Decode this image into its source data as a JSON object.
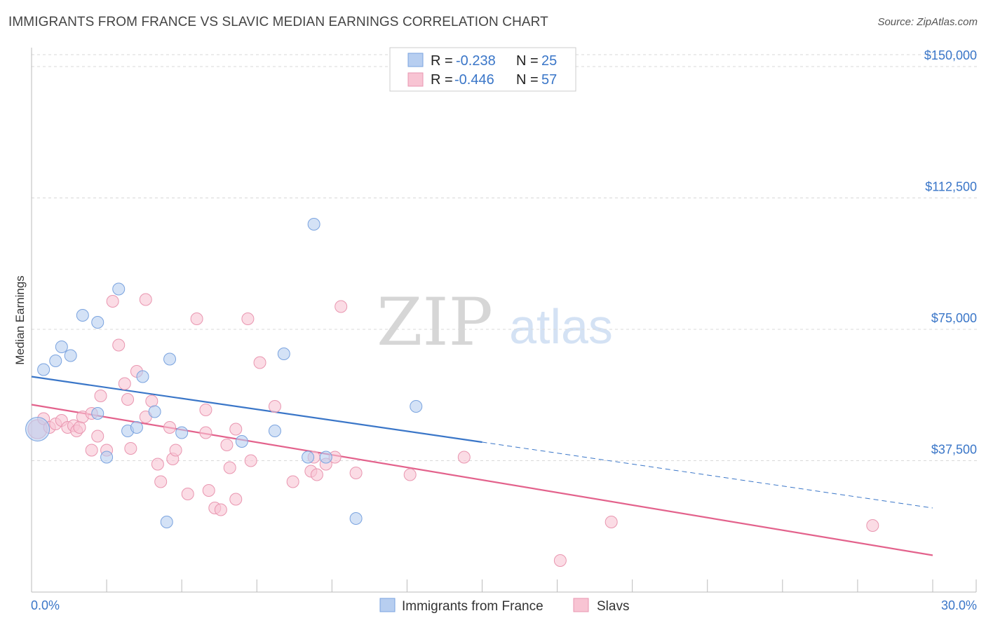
{
  "title": "IMMIGRANTS FROM FRANCE VS SLAVIC MEDIAN EARNINGS CORRELATION CHART",
  "source": "Source: ZipAtlas.com",
  "watermark": {
    "zip": "ZIP",
    "atlas": "atlas"
  },
  "colors": {
    "blue_fill": "#b7cef0",
    "blue_stroke": "#7aa3df",
    "blue_line": "#3a76c8",
    "pink_fill": "#f8c4d3",
    "pink_stroke": "#e996b0",
    "pink_line": "#e3628c",
    "tick_label": "#3a76c8",
    "grid": "#d8d8d8"
  },
  "legend_box": {
    "rows": [
      {
        "r_label": "R = ",
        "r_value": "-0.238",
        "n_label": "N = ",
        "n_value": "25"
      },
      {
        "r_label": "R = ",
        "r_value": "-0.446",
        "n_label": "N = ",
        "n_value": "57"
      }
    ]
  },
  "chart_data": {
    "type": "scatter",
    "ylabel": "Median Earnings",
    "xlim": [
      0,
      30
    ],
    "ylim": [
      0,
      155000
    ],
    "y_ticks": [
      37500,
      75000,
      112500,
      150000
    ],
    "y_tick_labels": [
      "$37,500",
      "$75,000",
      "$112,500",
      "$150,000"
    ],
    "x_tick_labels": [
      "0.0%",
      "30.0%"
    ],
    "x_axis_unit": "percent",
    "grid": true,
    "legend_position": "top-center and bottom",
    "series": [
      {
        "name": "Immigrants from France",
        "color": "blue",
        "r": -0.238,
        "n": 25,
        "trend": {
          "x0": 0,
          "y0": 61500,
          "x1": 15,
          "y1": 42800,
          "dashed_to_x": 30,
          "dashed_to_y": 24000
        },
        "points": [
          [
            0.2,
            46500,
            3
          ],
          [
            0.4,
            63500,
            1
          ],
          [
            0.8,
            66000,
            1
          ],
          [
            1.0,
            70000,
            1
          ],
          [
            1.3,
            67500,
            1
          ],
          [
            1.7,
            79000,
            1
          ],
          [
            2.2,
            51000,
            1
          ],
          [
            2.2,
            77000,
            1
          ],
          [
            2.5,
            38500,
            1
          ],
          [
            2.9,
            86500,
            1
          ],
          [
            3.2,
            46000,
            1
          ],
          [
            3.5,
            47000,
            1
          ],
          [
            3.7,
            61500,
            1
          ],
          [
            4.1,
            51500,
            1
          ],
          [
            4.5,
            20000,
            1
          ],
          [
            4.6,
            66500,
            1
          ],
          [
            5.0,
            45500,
            1
          ],
          [
            7.0,
            43000,
            1
          ],
          [
            8.1,
            46000,
            1
          ],
          [
            8.4,
            68000,
            1
          ],
          [
            9.2,
            38500,
            1
          ],
          [
            9.4,
            105000,
            1
          ],
          [
            9.8,
            38500,
            1
          ],
          [
            10.8,
            21000,
            1
          ],
          [
            12.8,
            53000,
            1
          ]
        ]
      },
      {
        "name": "Slavs",
        "color": "pink",
        "r": -0.446,
        "n": 57,
        "trend": {
          "x0": 0,
          "y0": 53500,
          "x1": 30,
          "y1": 10500
        },
        "points": [
          [
            0.2,
            46500,
            2
          ],
          [
            0.4,
            49500,
            1
          ],
          [
            0.6,
            47000,
            1
          ],
          [
            0.8,
            48000,
            1
          ],
          [
            1.0,
            49000,
            1
          ],
          [
            1.2,
            47000,
            1
          ],
          [
            1.4,
            47500,
            1
          ],
          [
            1.5,
            46000,
            1
          ],
          [
            1.6,
            47000,
            1
          ],
          [
            1.7,
            50000,
            1
          ],
          [
            2.0,
            51000,
            1
          ],
          [
            2.0,
            40500,
            1
          ],
          [
            2.2,
            44500,
            1
          ],
          [
            2.3,
            56000,
            1
          ],
          [
            2.5,
            40500,
            1
          ],
          [
            2.7,
            83000,
            1
          ],
          [
            2.9,
            70500,
            1
          ],
          [
            3.1,
            59500,
            1
          ],
          [
            3.2,
            55000,
            1
          ],
          [
            3.3,
            41000,
            1
          ],
          [
            3.5,
            63000,
            1
          ],
          [
            3.8,
            83500,
            1
          ],
          [
            3.8,
            50000,
            1
          ],
          [
            4.0,
            54500,
            1
          ],
          [
            4.2,
            36500,
            1
          ],
          [
            4.3,
            31500,
            1
          ],
          [
            4.6,
            47000,
            1
          ],
          [
            4.7,
            38000,
            1
          ],
          [
            4.8,
            40500,
            1
          ],
          [
            5.2,
            28000,
            1
          ],
          [
            5.5,
            78000,
            1
          ],
          [
            5.8,
            52000,
            1
          ],
          [
            5.8,
            45500,
            1
          ],
          [
            5.9,
            29000,
            1
          ],
          [
            6.1,
            24000,
            1
          ],
          [
            6.3,
            23500,
            1
          ],
          [
            6.5,
            42000,
            1
          ],
          [
            6.6,
            35500,
            1
          ],
          [
            6.8,
            46500,
            1
          ],
          [
            6.8,
            26500,
            1
          ],
          [
            7.2,
            78000,
            1
          ],
          [
            7.3,
            37500,
            1
          ],
          [
            7.6,
            65500,
            1
          ],
          [
            8.1,
            53000,
            1
          ],
          [
            8.7,
            31500,
            1
          ],
          [
            9.3,
            34500,
            1
          ],
          [
            9.4,
            38500,
            1
          ],
          [
            9.5,
            33500,
            1
          ],
          [
            9.8,
            36500,
            1
          ],
          [
            10.1,
            38500,
            1
          ],
          [
            10.3,
            81500,
            1
          ],
          [
            10.8,
            34000,
            1
          ],
          [
            12.6,
            33500,
            1
          ],
          [
            14.4,
            38500,
            1
          ],
          [
            17.6,
            9000,
            1
          ],
          [
            19.3,
            20000,
            1
          ],
          [
            28.0,
            19000,
            1
          ]
        ]
      }
    ]
  }
}
